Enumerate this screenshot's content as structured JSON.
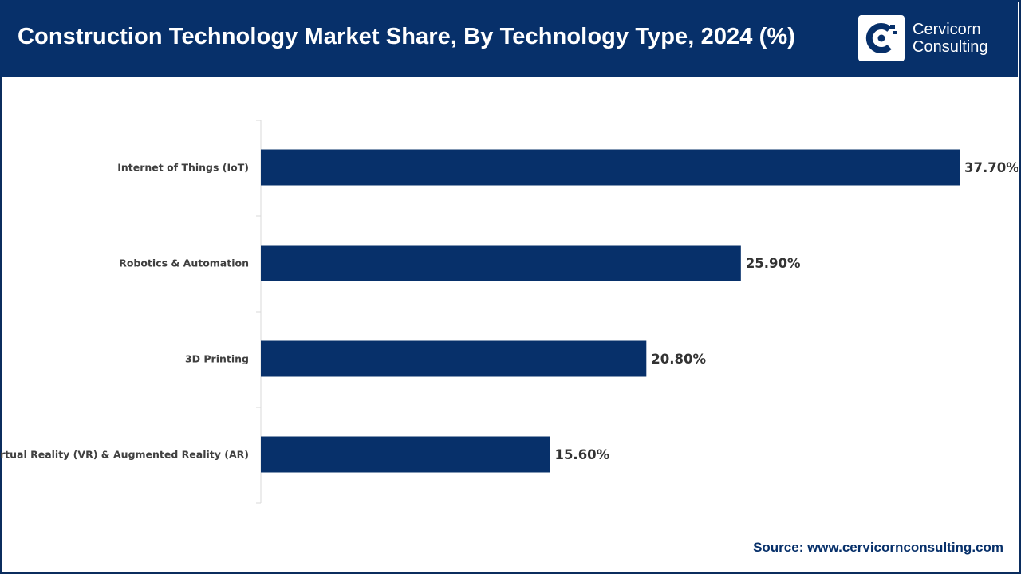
{
  "header": {
    "title": "Construction Technology Market Share, By Technology Type, 2024 (%)",
    "logo_line1": "Cervicorn",
    "logo_line2": "Consulting"
  },
  "colors": {
    "brand": "#07306a",
    "bar": "#07306a",
    "background": "#ffffff"
  },
  "source": "Source: www.cervicornconsulting.com",
  "chart_data": {
    "type": "bar",
    "orientation": "horizontal",
    "title": "Construction Technology Market Share, By Technology Type, 2024 (%)",
    "categories": [
      "Internet of Things (IoT)",
      "Robotics & Automation",
      "3D Printing",
      "Virtual Reality (VR) & Augmented Reality (AR)"
    ],
    "values": [
      37.7,
      25.9,
      20.8,
      15.6
    ],
    "value_labels": [
      "37.70%",
      "25.90%",
      "20.80%",
      "15.60%"
    ],
    "xlabel": "",
    "ylabel": "",
    "xlim": [
      0,
      37.7
    ],
    "grid": false,
    "legend": "none"
  }
}
